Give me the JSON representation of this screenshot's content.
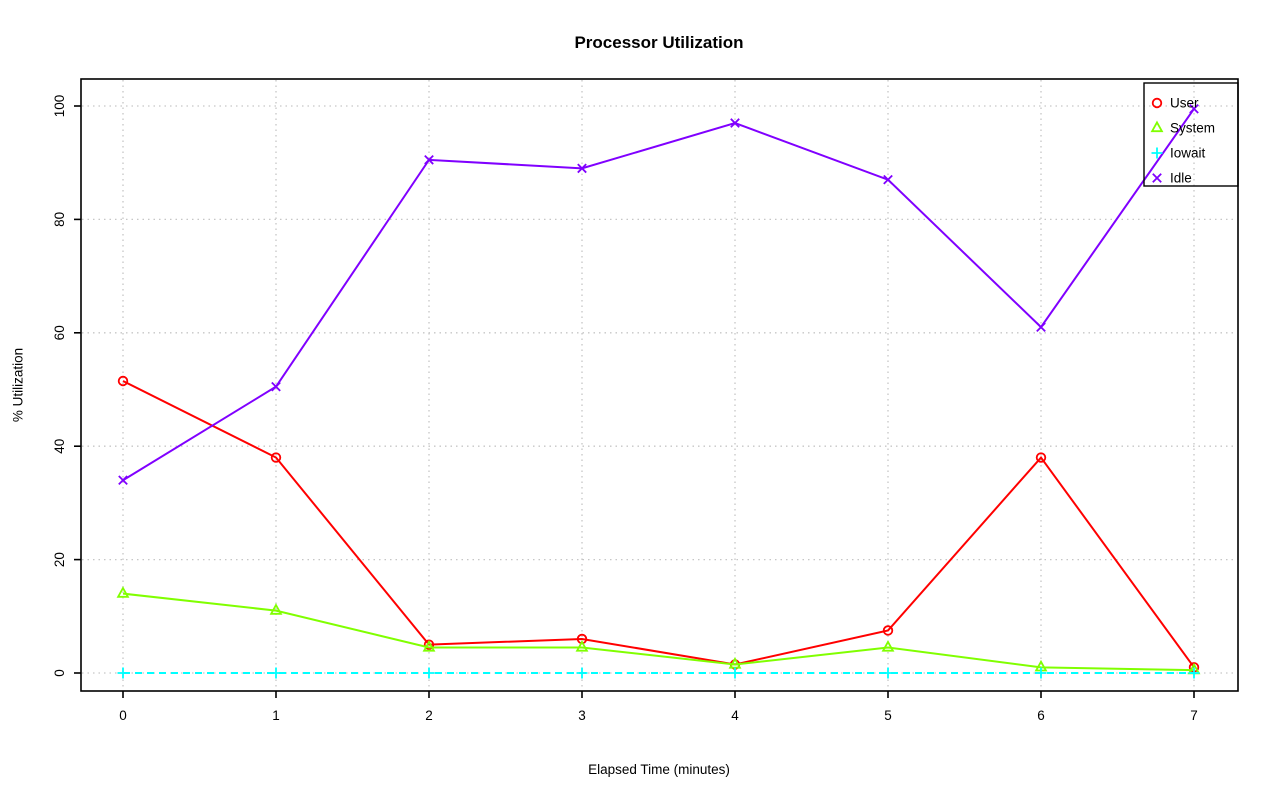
{
  "page": {
    "background": "#ffffff"
  },
  "chart_data": {
    "type": "line",
    "title": "Processor Utilization",
    "xlabel": "Elapsed Time (minutes)",
    "ylabel": "% Utilization",
    "x": [
      0,
      1,
      2,
      3,
      4,
      5,
      6,
      7
    ],
    "xticks": [
      "0",
      "1",
      "2",
      "3",
      "4",
      "5",
      "6",
      "7"
    ],
    "yticks": [
      "0",
      "20",
      "40",
      "60",
      "80",
      "100"
    ],
    "xlim": [
      0,
      7
    ],
    "ylim": [
      0,
      100
    ],
    "grid": "dotted",
    "legend_position": "top-right",
    "series": [
      {
        "name": "User",
        "color": "#ff0000",
        "marker": "circle",
        "line_style": "solid",
        "values": [
          51.5,
          38,
          5,
          6,
          1.5,
          7.5,
          38,
          1
        ]
      },
      {
        "name": "System",
        "color": "#80ff00",
        "marker": "triangle",
        "line_style": "solid",
        "values": [
          14,
          11,
          4.5,
          4.5,
          1.5,
          4.5,
          1,
          0.5
        ]
      },
      {
        "name": "Iowait",
        "color": "#00ffff",
        "marker": "plus",
        "line_style": "dashed",
        "values": [
          0,
          0,
          0,
          0,
          0,
          0,
          0,
          0
        ]
      },
      {
        "name": "Idle",
        "color": "#8000ff",
        "marker": "x",
        "line_style": "solid",
        "values": [
          34,
          50.5,
          90.5,
          89,
          97,
          87,
          61,
          99.5
        ]
      }
    ]
  }
}
